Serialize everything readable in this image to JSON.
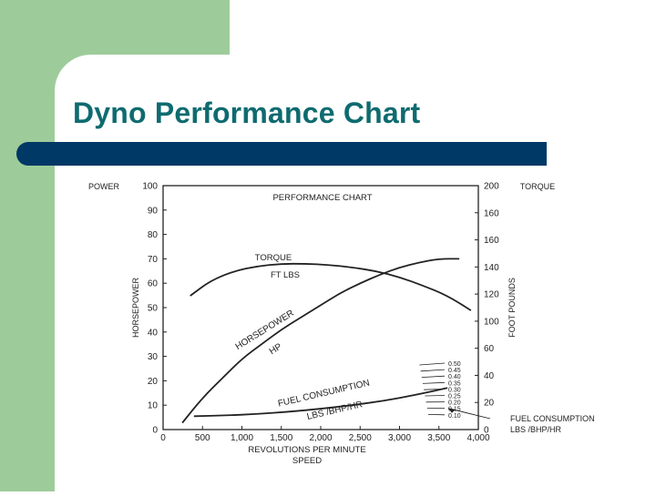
{
  "slide": {
    "title": "Dyno Performance Chart"
  },
  "chart_data": {
    "type": "line",
    "title": "PERFORMANCE CHART",
    "xlabel": "REVOLUTIONS PER MINUTE\nSPEED",
    "x_ticks": [
      "0",
      "500",
      "1,000",
      "1,500",
      "2,000",
      "2,500",
      "3,000",
      "3,500",
      "4,000"
    ],
    "xlim": [
      0,
      4000
    ],
    "left_axis": {
      "header": "POWER",
      "label": "HORSEPOWER",
      "ticks": [
        "0",
        "10",
        "20",
        "30",
        "40",
        "50",
        "60",
        "70",
        "80",
        "90",
        "100"
      ],
      "ylim": [
        0,
        100
      ]
    },
    "right_axis": {
      "header": "TORQUE",
      "label": "FOOT POUNDS",
      "ticks": [
        "0",
        "20",
        "40",
        "60",
        "100",
        "120",
        "140",
        "160",
        "160",
        "200"
      ],
      "ylim": [
        0,
        200
      ]
    },
    "fuel_scale": {
      "ticks": [
        "0.50",
        "0.45",
        "0.40",
        "0.35",
        "0.30",
        "0.25",
        "0.20",
        "0.15",
        "0.10"
      ],
      "label": "FUEL CONSUMPTION\nLBS /BHP/HR"
    },
    "series": [
      {
        "name": "HORSEPOWER HP",
        "axis": "left",
        "x": [
          250,
          500,
          750,
          1000,
          1250,
          1500,
          1750,
          2000,
          2250,
          2500,
          2750,
          3000,
          3250,
          3500,
          3750
        ],
        "values": [
          3,
          13,
          21,
          29,
          35,
          41,
          46,
          51,
          56,
          60,
          63.5,
          66.5,
          68.5,
          70,
          70
        ]
      },
      {
        "name": "TORQUE FT LBS",
        "axis": "right",
        "x": [
          350,
          600,
          900,
          1200,
          1500,
          1800,
          2100,
          2400,
          2700,
          3000,
          3300,
          3600,
          3900
        ],
        "values": [
          110,
          122,
          130,
          134,
          136,
          136,
          135,
          133,
          130,
          125,
          118,
          110,
          98
        ]
      },
      {
        "name": "FUEL CONSUMPTION LBS /BHP/HR",
        "axis": "left",
        "x": [
          400,
          800,
          1200,
          1600,
          2000,
          2400,
          2800,
          3200,
          3600
        ],
        "values": [
          5.5,
          5.8,
          6.4,
          7.3,
          8.5,
          10.0,
          11.8,
          14.2,
          17.0
        ]
      }
    ],
    "annotations": [
      "TORQUE",
      "FT LBS",
      "HORSEPOWER",
      "HP",
      "FUEL CONSUMPTION",
      "LBS /BHP/HR"
    ],
    "grid": false
  }
}
